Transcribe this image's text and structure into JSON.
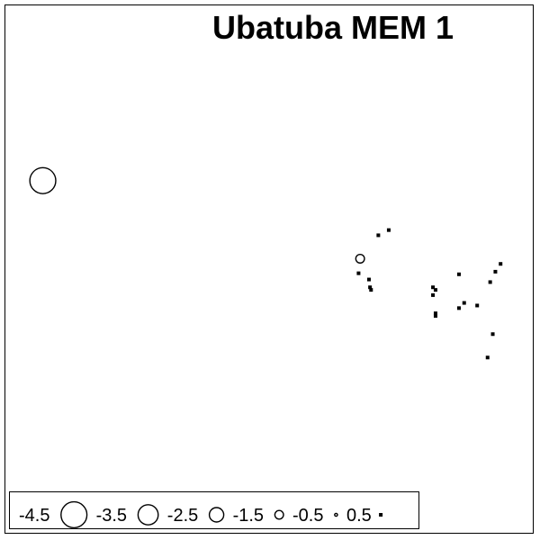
{
  "chart_data": {
    "type": "scatter",
    "title": "Ubatuba MEM 1",
    "xlabel": "",
    "ylabel": "",
    "grid": false,
    "legend_position": "bottom-left",
    "encoding": "bubble size and fill by value (open circles negative, filled squares positive)",
    "legend": {
      "values": [
        -4.5,
        -3.5,
        -2.5,
        -1.5,
        -0.5,
        0.5
      ],
      "labels": [
        "-4.5",
        "-3.5",
        "-2.5",
        "-1.5",
        "-0.5",
        "0.5"
      ]
    },
    "xlim": [
      0,
      100
    ],
    "ylim": [
      0,
      100
    ],
    "points": [
      {
        "x": 6.5,
        "y": 67,
        "value": -4.5
      },
      {
        "x": 67.5,
        "y": 52,
        "value": -1.5
      },
      {
        "x": 71,
        "y": 56.5,
        "value": 0.5
      },
      {
        "x": 73,
        "y": 57.5,
        "value": 0.5
      },
      {
        "x": 67.2,
        "y": 49.2,
        "value": 0.5
      },
      {
        "x": 69.2,
        "y": 48,
        "value": 0.5
      },
      {
        "x": 69.4,
        "y": 46.5,
        "value": 0.5
      },
      {
        "x": 69.6,
        "y": 46,
        "value": 0.5
      },
      {
        "x": 81.5,
        "y": 46.5,
        "value": 0.5
      },
      {
        "x": 82,
        "y": 46,
        "value": 0.5
      },
      {
        "x": 81.5,
        "y": 45,
        "value": 0.5
      },
      {
        "x": 82,
        "y": 41.5,
        "value": 0.5
      },
      {
        "x": 82,
        "y": 41,
        "value": 0.5
      },
      {
        "x": 86.5,
        "y": 49,
        "value": 0.5
      },
      {
        "x": 86.5,
        "y": 42.5,
        "value": 0.5
      },
      {
        "x": 87.5,
        "y": 43.5,
        "value": 0.5
      },
      {
        "x": 90,
        "y": 43,
        "value": 0.5
      },
      {
        "x": 94.5,
        "y": 51,
        "value": 0.5
      },
      {
        "x": 93.5,
        "y": 49.5,
        "value": 0.5
      },
      {
        "x": 92.5,
        "y": 47.5,
        "value": 0.5
      },
      {
        "x": 93,
        "y": 37.5,
        "value": 0.5
      },
      {
        "x": 92,
        "y": 33,
        "value": 0.5
      }
    ]
  }
}
